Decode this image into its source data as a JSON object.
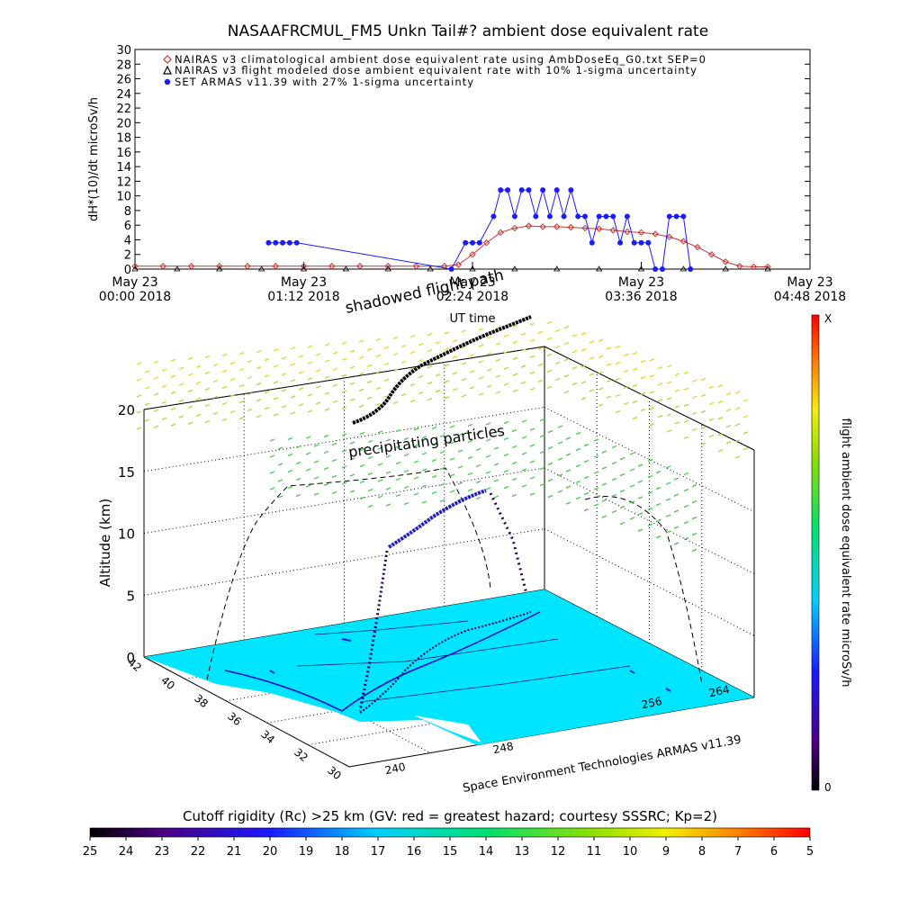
{
  "chart_data": [
    {
      "type": "scatter",
      "title": "NASAAFRCMUL_FM5 Unkn Tail#? ambient dose equivalent rate",
      "ylabel": "dH*(10)/dt microSv/h",
      "xlabel": "UT time",
      "ylim": [
        0,
        30
      ],
      "yticks": [
        "0",
        "2",
        "4",
        "6",
        "8",
        "10",
        "12",
        "14",
        "16",
        "18",
        "20",
        "22",
        "24",
        "26",
        "28",
        "30"
      ],
      "xlim_hours": [
        0,
        4.8
      ],
      "xticks": [
        {
          "date": "May 23",
          "time": "00:00 2018",
          "h": 0
        },
        {
          "date": "May 23",
          "time": "01:12 2018",
          "h": 1.2
        },
        {
          "date": "May 23",
          "time": "02:24 2018",
          "h": 2.4
        },
        {
          "date": "May 23",
          "time": "03:36 2018",
          "h": 3.6
        },
        {
          "date": "May 23",
          "time": "04:48 2018",
          "h": 4.8
        }
      ],
      "legend_position": "top-left",
      "series": [
        {
          "name": "NAIRAS v3 climatological ambient dose equivalent rate using AmbDoseEq_G0.txt SEP=0",
          "marker": "diamond",
          "color": "#cc3333",
          "x": [
            0,
            0.2,
            0.4,
            0.6,
            0.8,
            1.0,
            1.2,
            1.4,
            1.6,
            1.8,
            2.0,
            2.2,
            2.3,
            2.4,
            2.5,
            2.6,
            2.7,
            2.8,
            2.9,
            3.0,
            3.1,
            3.2,
            3.3,
            3.4,
            3.5,
            3.6,
            3.7,
            3.8,
            3.9,
            4.0,
            4.1,
            4.2,
            4.3,
            4.4,
            4.5
          ],
          "y": [
            0.4,
            0.4,
            0.4,
            0.4,
            0.4,
            0.4,
            0.4,
            0.4,
            0.4,
            0.4,
            0.4,
            0.4,
            0.6,
            2.0,
            3.6,
            5.0,
            5.6,
            5.9,
            5.8,
            5.8,
            5.7,
            5.6,
            5.5,
            5.3,
            5.1,
            5.0,
            4.8,
            4.4,
            3.8,
            3.0,
            2.0,
            1.0,
            0.4,
            0.3,
            0.3
          ]
        },
        {
          "name": "NAIRAS v3 flight modeled dose ambient equivalent rate with 10% 1-sigma uncertainty",
          "marker": "triangle",
          "color": "#000000",
          "x": [
            0,
            0.3,
            0.6,
            0.9,
            1.2,
            1.5,
            1.8,
            2.1,
            2.4,
            2.7,
            3.0,
            3.3,
            3.6,
            3.9,
            4.2,
            4.5
          ],
          "y": [
            0,
            0,
            0,
            0,
            0,
            0,
            0,
            0,
            0,
            0,
            0,
            0,
            0,
            0,
            0,
            0
          ]
        },
        {
          "name": "SET ARMAS v11.39 with 27% 1-sigma uncertainty",
          "marker": "circle",
          "color": "#1a1aff",
          "x": [
            0.95,
            1.0,
            1.05,
            1.1,
            1.15,
            2.25,
            2.35,
            2.4,
            2.45,
            2.55,
            2.6,
            2.65,
            2.7,
            2.75,
            2.8,
            2.85,
            2.9,
            2.95,
            3.0,
            3.05,
            3.1,
            3.15,
            3.2,
            3.25,
            3.3,
            3.35,
            3.4,
            3.45,
            3.5,
            3.55,
            3.6,
            3.65,
            3.7,
            3.75,
            3.8,
            3.85,
            3.9,
            3.95
          ],
          "y": [
            3.6,
            3.6,
            3.6,
            3.6,
            3.6,
            0,
            3.6,
            3.6,
            3.6,
            7.2,
            10.8,
            10.8,
            7.2,
            10.8,
            10.8,
            7.2,
            10.8,
            7.2,
            10.8,
            7.2,
            10.8,
            7.2,
            7.2,
            3.6,
            7.2,
            7.2,
            7.2,
            3.6,
            7.2,
            3.6,
            3.6,
            3.6,
            0,
            0,
            7.2,
            7.2,
            7.2,
            0
          ]
        }
      ]
    },
    {
      "type": "scatter",
      "title": "",
      "zlabel": "Altitude (km)",
      "zticks": [
        "0",
        "5",
        "10",
        "15",
        "20"
      ],
      "latitude_ticks": [
        "42",
        "40",
        "38",
        "36",
        "34",
        "32",
        "30"
      ],
      "longitude_ticks_front": [
        "240",
        "248"
      ],
      "longitude_ticks_right": [
        "256",
        "264"
      ],
      "footer": "Space Environment Technologies ARMAS v11.39",
      "annotations": [
        "shadowed flight path",
        "precipitating particles"
      ],
      "colorbar": {
        "label": "flight ambient dose equivalent rate microSv/h",
        "top": "X",
        "bottom": "0"
      }
    },
    {
      "type": "heatmap",
      "title": "Cutoff rigidity (Rc) >25 km (GV: red = greatest hazard; courtesy SSSRC; Kp=2)",
      "ticks": [
        "25",
        "24",
        "23",
        "22",
        "21",
        "20",
        "19",
        "18",
        "17",
        "16",
        "15",
        "14",
        "13",
        "12",
        "11",
        "10",
        "9",
        "8",
        "7",
        "6",
        "5"
      ],
      "colors": {
        "map_fill": "#00e5ff",
        "accent_yellow": "#dcdc30",
        "accent_green": "#4ccc4c"
      }
    }
  ]
}
